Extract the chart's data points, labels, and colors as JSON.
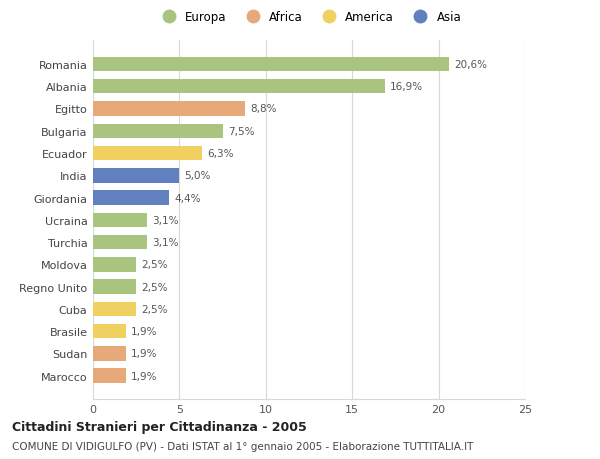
{
  "countries": [
    "Romania",
    "Albania",
    "Egitto",
    "Bulgaria",
    "Ecuador",
    "India",
    "Giordania",
    "Ucraina",
    "Turchia",
    "Moldova",
    "Regno Unito",
    "Cuba",
    "Brasile",
    "Sudan",
    "Marocco"
  ],
  "values": [
    20.6,
    16.9,
    8.8,
    7.5,
    6.3,
    5.0,
    4.4,
    3.1,
    3.1,
    2.5,
    2.5,
    2.5,
    1.9,
    1.9,
    1.9
  ],
  "labels": [
    "20,6%",
    "16,9%",
    "8,8%",
    "7,5%",
    "6,3%",
    "5,0%",
    "4,4%",
    "3,1%",
    "3,1%",
    "2,5%",
    "2,5%",
    "2,5%",
    "1,9%",
    "1,9%",
    "1,9%"
  ],
  "continents": [
    "Europa",
    "Europa",
    "Africa",
    "Europa",
    "America",
    "Asia",
    "Asia",
    "Europa",
    "Europa",
    "Europa",
    "Europa",
    "America",
    "America",
    "Africa",
    "Africa"
  ],
  "continent_colors": {
    "Europa": "#a8c47e",
    "Africa": "#e8a97a",
    "America": "#f0d060",
    "Asia": "#6080c0"
  },
  "legend_order": [
    "Europa",
    "Africa",
    "America",
    "Asia"
  ],
  "legend_colors": [
    "#a8c47e",
    "#e8a97a",
    "#f0d060",
    "#6080c0"
  ],
  "xlim": [
    0,
    25
  ],
  "xticks": [
    0,
    5,
    10,
    15,
    20,
    25
  ],
  "title": "Cittadini Stranieri per Cittadinanza - 2005",
  "subtitle": "COMUNE DI VIDIGULFO (PV) - Dati ISTAT al 1° gennaio 2005 - Elaborazione TUTTITALIA.IT",
  "background_color": "#ffffff",
  "grid_color": "#d8d8d8",
  "bar_height": 0.65
}
